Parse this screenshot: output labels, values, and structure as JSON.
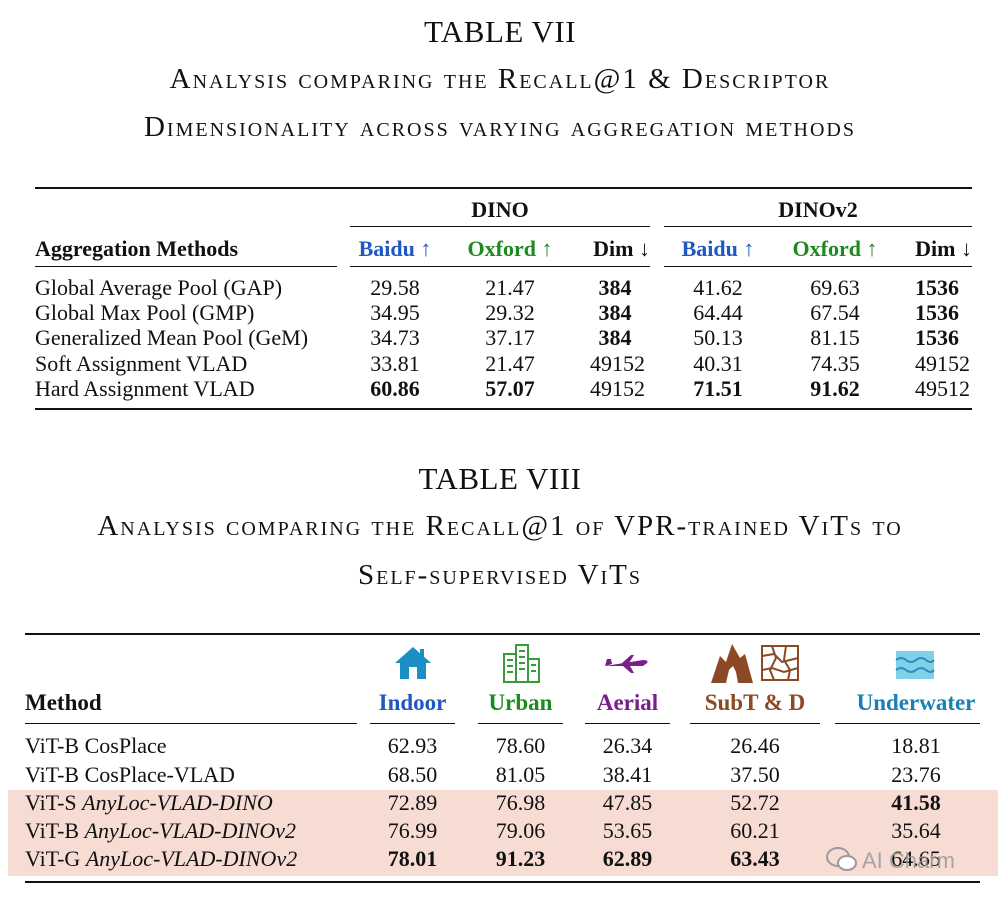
{
  "table7": {
    "number": "TABLE VII",
    "caption_line1": "Analysis comparing the Recall@1 & Descriptor",
    "caption_line2": "Dimensionality across varying aggregation methods",
    "group_dino": "DINO",
    "group_dinov2": "DINOv2",
    "col_method": "Aggregation Methods",
    "col_baidu": "Baidu ↑",
    "col_oxford": "Oxford ↑",
    "col_dim": "Dim ↓",
    "rows": [
      {
        "method": "Global Average Pool (GAP)",
        "d_baidu": "29.58",
        "d_oxford": "21.47",
        "d_dim": "384",
        "v2_baidu": "41.62",
        "v2_oxford": "69.63",
        "v2_dim": "1536"
      },
      {
        "method": "Global Max Pool (GMP)",
        "d_baidu": "34.95",
        "d_oxford": "29.32",
        "d_dim": "384",
        "v2_baidu": "64.44",
        "v2_oxford": "67.54",
        "v2_dim": "1536"
      },
      {
        "method": "Generalized Mean Pool (GeM)",
        "d_baidu": "34.73",
        "d_oxford": "37.17",
        "d_dim": "384",
        "v2_baidu": "50.13",
        "v2_oxford": "81.15",
        "v2_dim": "1536"
      },
      {
        "method": "Soft Assignment VLAD",
        "d_baidu": "33.81",
        "d_oxford": "21.47",
        "d_dim": "49152",
        "v2_baidu": "40.31",
        "v2_oxford": "74.35",
        "v2_dim": "49152"
      },
      {
        "method": "Hard Assignment VLAD",
        "d_baidu": "60.86",
        "d_oxford": "57.07",
        "d_dim": "49152",
        "v2_baidu": "71.51",
        "v2_oxford": "91.62",
        "v2_dim": "49512"
      }
    ]
  },
  "table8": {
    "number": "TABLE VIII",
    "caption_line1": "Analysis comparing the Recall@1 of VPR-trained ViTs to",
    "caption_line2": "Self-supervised ViTs",
    "col_method": "Method",
    "col_indoor": "Indoor",
    "col_urban": "Urban",
    "col_aerial": "Aerial",
    "col_subt": "SubT & D",
    "col_underwater": "Underwater",
    "rows": [
      {
        "prefix": "ViT-B",
        "name": "CosPlace",
        "indoor": "62.93",
        "urban": "78.60",
        "aerial": "26.34",
        "subt": "26.46",
        "underwater": "18.81"
      },
      {
        "prefix": "ViT-B",
        "name": "CosPlace-VLAD",
        "indoor": "68.50",
        "urban": "81.05",
        "aerial": "38.41",
        "subt": "37.50",
        "underwater": "23.76"
      },
      {
        "prefix": "ViT-S",
        "name": "AnyLoc-VLAD-DINO",
        "indoor": "72.89",
        "urban": "76.98",
        "aerial": "47.85",
        "subt": "52.72",
        "underwater": "41.58"
      },
      {
        "prefix": "ViT-B",
        "name": "AnyLoc-VLAD-DINOv2",
        "indoor": "76.99",
        "urban": "79.06",
        "aerial": "53.65",
        "subt": "60.21",
        "underwater": "35.64"
      },
      {
        "prefix": "ViT-G",
        "name": "AnyLoc-VLAD-DINOv2",
        "indoor": "78.01",
        "urban": "91.23",
        "aerial": "62.89",
        "subt": "63.43",
        "underwater": "64.65"
      }
    ],
    "icons": [
      "house-icon",
      "buildings-icon",
      "airplane-icon",
      "cave-icon",
      "map-icon",
      "water-icon"
    ],
    "colors": {
      "indoor": "#1f57c3",
      "urban": "#1e8a1e",
      "aerial": "#7a1f8a",
      "subt": "#8b4a23",
      "underwater": "#1a82b3",
      "highlight": "#f7dcd3"
    }
  },
  "watermark": "AI Charm"
}
